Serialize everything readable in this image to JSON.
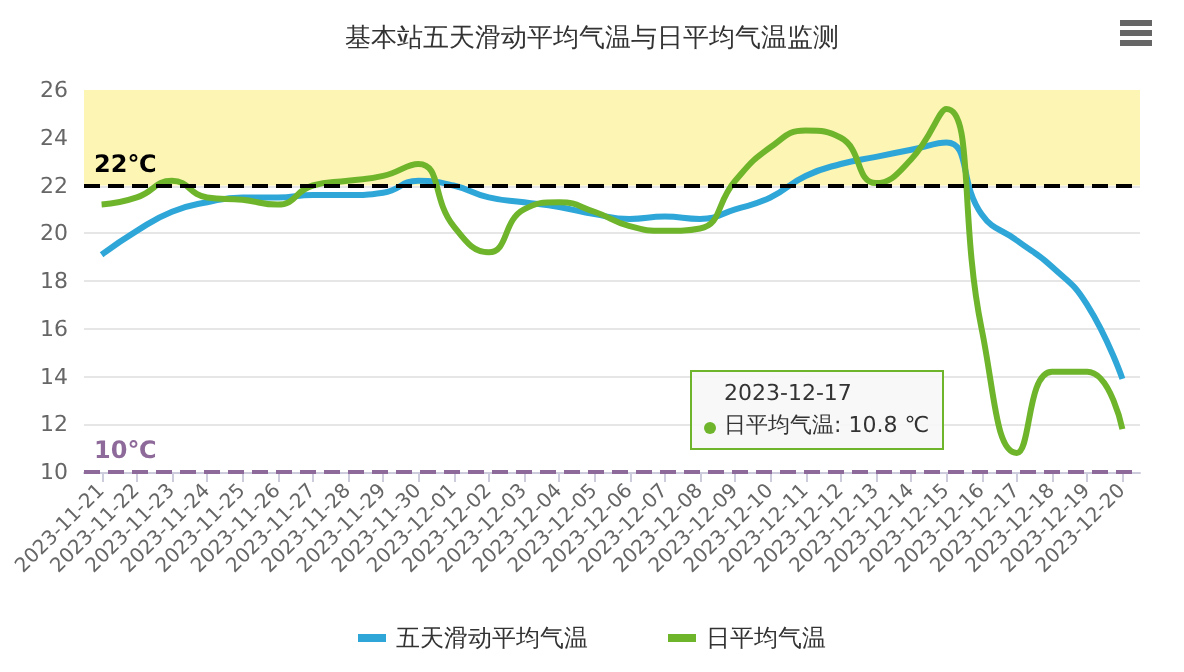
{
  "chart_data": {
    "type": "line",
    "title": "基本站五天滑动平均气温与日平均气温监测",
    "categories": [
      "2023-11-21",
      "2023-11-22",
      "2023-11-23",
      "2023-11-24",
      "2023-11-25",
      "2023-11-26",
      "2023-11-27",
      "2023-11-28",
      "2023-11-29",
      "2023-11-30",
      "2023-12-01",
      "2023-12-02",
      "2023-12-03",
      "2023-12-04",
      "2023-12-05",
      "2023-12-06",
      "2023-12-07",
      "2023-12-08",
      "2023-12-09",
      "2023-12-10",
      "2023-12-11",
      "2023-12-12",
      "2023-12-13",
      "2023-12-14",
      "2023-12-15",
      "2023-12-16",
      "2023-12-17",
      "2023-12-18",
      "2023-12-19",
      "2023-12-20"
    ],
    "series": [
      {
        "name": "五天滑动平均气温",
        "color": "#2ea7d8",
        "values": [
          19.1,
          20.1,
          20.9,
          21.3,
          21.5,
          21.5,
          21.6,
          21.6,
          21.7,
          22.2,
          22.0,
          21.5,
          21.3,
          21.1,
          20.8,
          20.6,
          20.7,
          20.6,
          21.0,
          21.5,
          22.4,
          22.9,
          23.2,
          23.5,
          23.8,
          20.8,
          19.7,
          18.6,
          17.0,
          13.9
        ]
      },
      {
        "name": "日平均气温",
        "color": "#6fb52c",
        "values": [
          21.2,
          21.5,
          22.2,
          21.5,
          21.4,
          21.2,
          22.0,
          22.2,
          22.4,
          22.9,
          20.3,
          19.2,
          21.0,
          21.3,
          20.9,
          20.3,
          20.1,
          20.2,
          22.2,
          23.6,
          24.3,
          24.0,
          22.1,
          23.1,
          25.2,
          16.0,
          10.8,
          14.2,
          14.2,
          11.8
        ]
      }
    ],
    "ylim": [
      10,
      26
    ],
    "yticks": [
      10,
      12,
      14,
      16,
      18,
      20,
      22,
      24,
      26
    ],
    "grid": "y",
    "legend": "bottom",
    "marker": "none",
    "line_style": "solid",
    "ref_lines": [
      {
        "axis": "y",
        "value": 22,
        "label": "22℃",
        "color": "#000000",
        "line_style": "dashed"
      },
      {
        "axis": "y",
        "value": 10,
        "label": "10℃",
        "color": "#8e6a9a",
        "line_style": "dashed"
      }
    ],
    "bands": [
      {
        "axis": "y",
        "from": 22,
        "to": 26,
        "color": "#fdf5b4"
      }
    ],
    "annotations": [
      "2023-12-17\n日平均气温: 10.8 ℃"
    ]
  }
}
